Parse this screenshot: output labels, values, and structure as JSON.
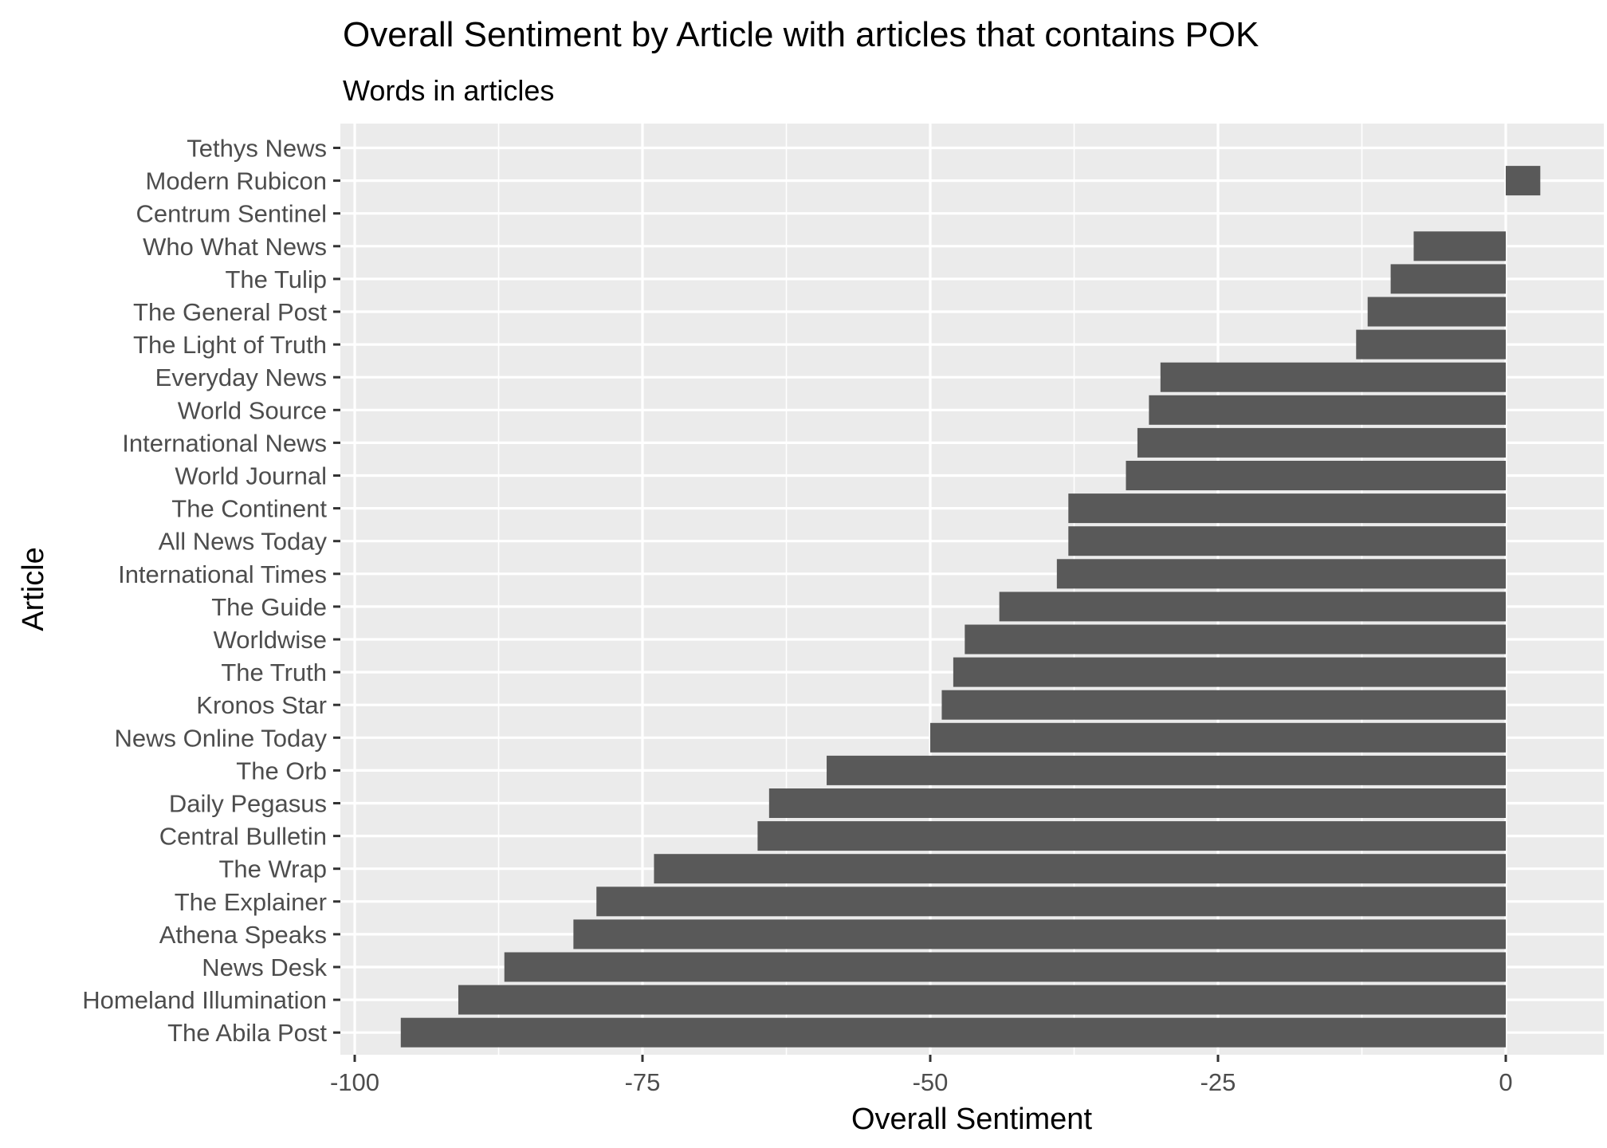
{
  "chart_data": {
    "type": "bar",
    "orientation": "horizontal",
    "title": "Overall Sentiment by Article with articles that contains POK",
    "subtitle": "Words in articles",
    "xlabel": "Overall Sentiment",
    "ylabel": "Article",
    "xlim": [
      -100,
      0
    ],
    "x_ticks": [
      -100,
      -75,
      -50,
      -25,
      0
    ],
    "x_tick_labels": [
      "-100",
      "-75",
      "-50",
      "-25",
      "0"
    ],
    "grid": true,
    "legend": "none",
    "bar_color": "#595959",
    "panel_color": "#EBEBEB",
    "grid_color": "#FFFFFF",
    "categories": [
      "Tethys News",
      "Modern Rubicon",
      "Centrum Sentinel",
      "Who What News",
      "The Tulip",
      "The General Post",
      "The Light of Truth",
      "Everyday News",
      "World Source",
      "International News",
      "World Journal",
      "The Continent",
      "All News Today",
      "International Times",
      "The Guide",
      "Worldwise",
      "The Truth",
      "Kronos Star",
      "News Online Today",
      "The Orb",
      "Daily Pegasus",
      "Central Bulletin",
      "The Wrap",
      "The Explainer",
      "Athena Speaks",
      "News Desk",
      "Homeland Illumination",
      "The Abila Post"
    ],
    "values": [
      0,
      3,
      0,
      -8,
      -10,
      -12,
      -13,
      -30,
      -31,
      -32,
      -33,
      -38,
      -38,
      -39,
      -44,
      -47,
      -48,
      -49,
      -50,
      -59,
      -64,
      -65,
      -74,
      -79,
      -81,
      -87,
      -91,
      -96
    ]
  }
}
